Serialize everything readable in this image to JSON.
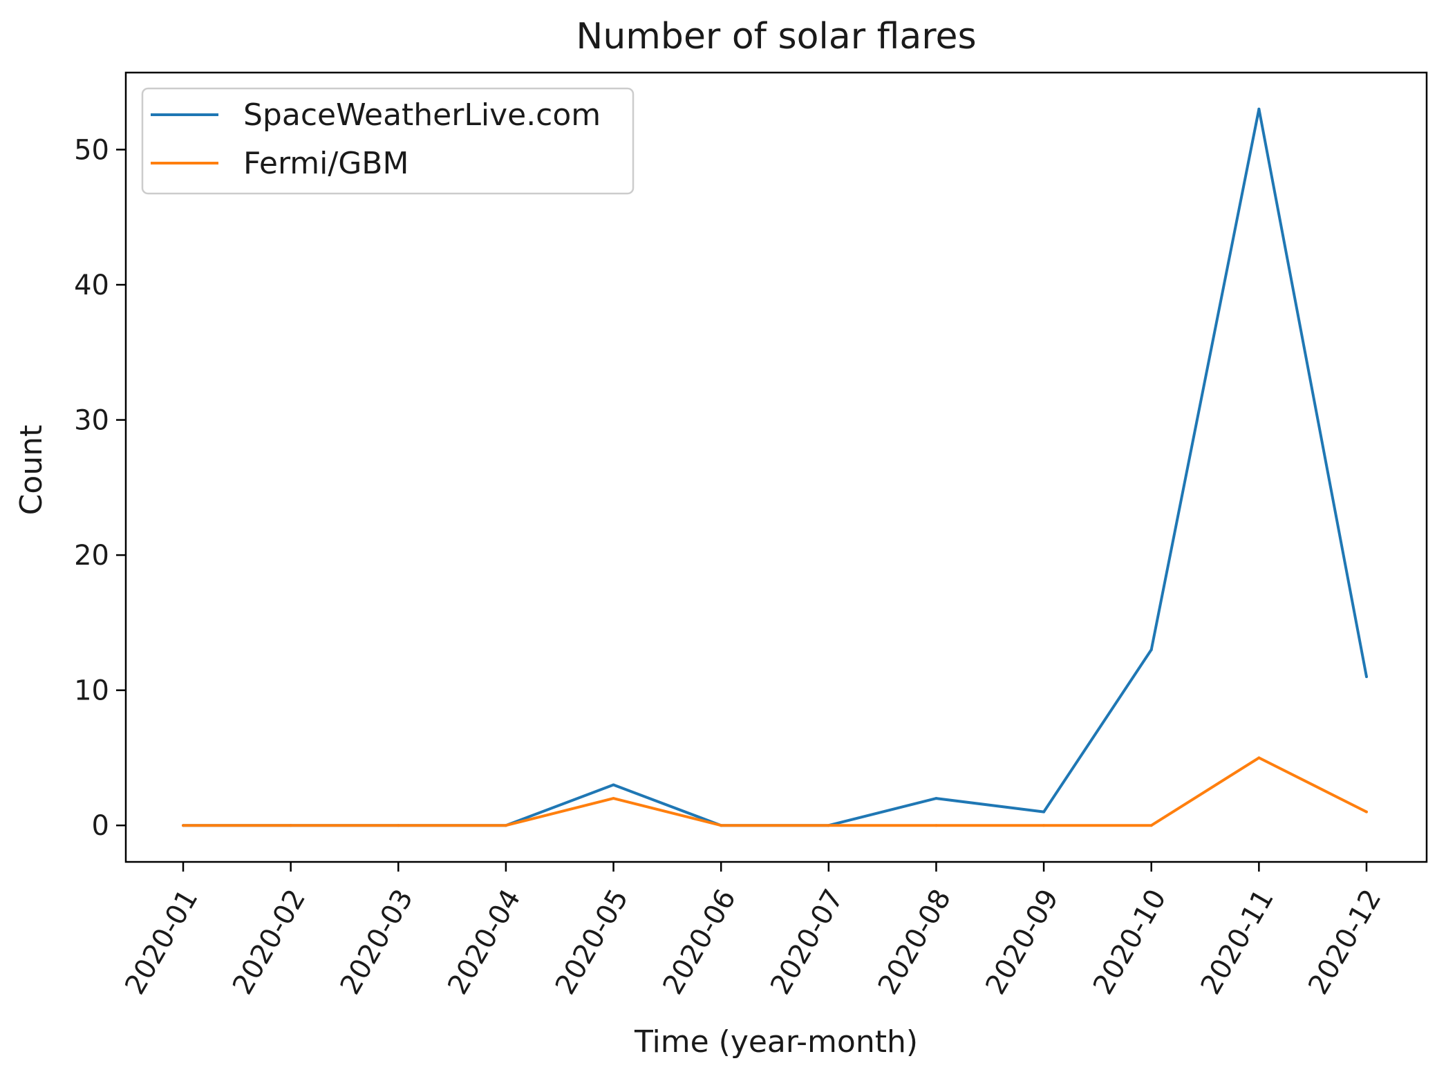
{
  "chart_data": {
    "type": "line",
    "title": "Number of solar flares",
    "xlabel": "Time (year-month)",
    "ylabel": "Count",
    "categories": [
      "2020-01",
      "2020-02",
      "2020-03",
      "2020-04",
      "2020-05",
      "2020-06",
      "2020-07",
      "2020-08",
      "2020-09",
      "2020-10",
      "2020-11",
      "2020-12"
    ],
    "yticks": [
      0,
      10,
      20,
      30,
      40,
      50
    ],
    "ylim": [
      -2.7,
      55.7
    ],
    "grid": false,
    "legend_position": "top-left",
    "series": [
      {
        "name": "SpaceWeatherLive.com",
        "color": "#1f77b4",
        "values": [
          0,
          0,
          0,
          0,
          3,
          0,
          0,
          2,
          1,
          13,
          53,
          11
        ]
      },
      {
        "name": "Fermi/GBM",
        "color": "#ff7f0e",
        "values": [
          0,
          0,
          0,
          0,
          2,
          0,
          0,
          0,
          0,
          0,
          5,
          1
        ]
      }
    ]
  }
}
